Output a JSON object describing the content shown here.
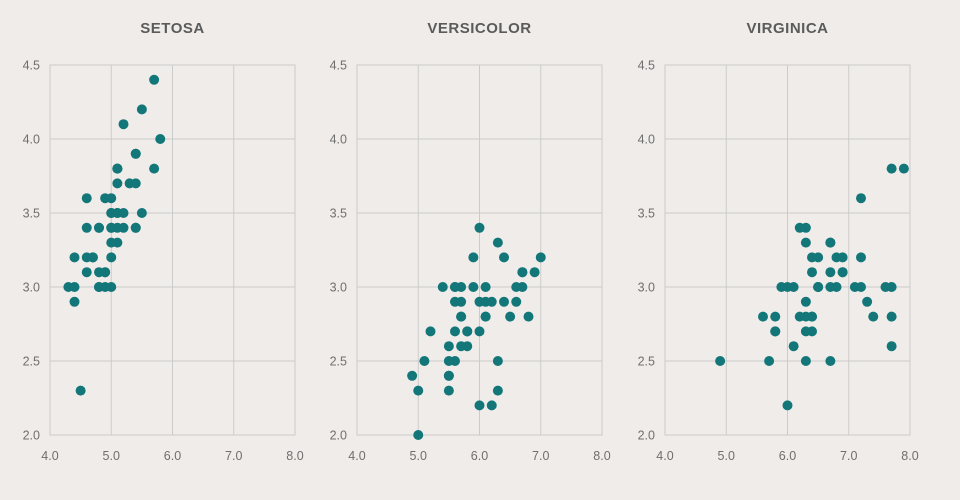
{
  "chart_data": [
    {
      "type": "scatter",
      "title": "SETOSA",
      "xlim": [
        4.0,
        8.0
      ],
      "ylim": [
        2.0,
        4.5
      ],
      "x_ticks": [
        "4.0",
        "5.0",
        "6.0",
        "7.0",
        "8.0"
      ],
      "y_ticks": [
        "2.0",
        "2.5",
        "3.0",
        "3.5",
        "4.0",
        "4.5"
      ],
      "grid": true,
      "color": "#137779",
      "points": [
        [
          5.1,
          3.5
        ],
        [
          4.9,
          3.0
        ],
        [
          4.7,
          3.2
        ],
        [
          4.6,
          3.1
        ],
        [
          5.0,
          3.6
        ],
        [
          5.4,
          3.9
        ],
        [
          4.6,
          3.4
        ],
        [
          5.0,
          3.4
        ],
        [
          4.4,
          2.9
        ],
        [
          4.9,
          3.1
        ],
        [
          5.4,
          3.7
        ],
        [
          4.8,
          3.4
        ],
        [
          4.8,
          3.0
        ],
        [
          4.3,
          3.0
        ],
        [
          5.8,
          4.0
        ],
        [
          5.7,
          4.4
        ],
        [
          5.4,
          3.9
        ],
        [
          5.1,
          3.5
        ],
        [
          5.7,
          3.8
        ],
        [
          5.1,
          3.8
        ],
        [
          5.4,
          3.4
        ],
        [
          5.1,
          3.7
        ],
        [
          4.6,
          3.6
        ],
        [
          5.1,
          3.3
        ],
        [
          4.8,
          3.4
        ],
        [
          5.0,
          3.0
        ],
        [
          5.0,
          3.4
        ],
        [
          5.2,
          3.5
        ],
        [
          5.2,
          3.4
        ],
        [
          4.7,
          3.2
        ],
        [
          4.8,
          3.1
        ],
        [
          5.4,
          3.4
        ],
        [
          5.2,
          4.1
        ],
        [
          5.5,
          4.2
        ],
        [
          4.9,
          3.1
        ],
        [
          5.0,
          3.2
        ],
        [
          5.5,
          3.5
        ],
        [
          4.9,
          3.6
        ],
        [
          4.4,
          3.0
        ],
        [
          5.1,
          3.4
        ],
        [
          5.0,
          3.5
        ],
        [
          4.5,
          2.3
        ],
        [
          4.4,
          3.2
        ],
        [
          5.0,
          3.5
        ],
        [
          5.1,
          3.8
        ],
        [
          4.8,
          3.0
        ],
        [
          5.1,
          3.8
        ],
        [
          4.6,
          3.2
        ],
        [
          5.3,
          3.7
        ],
        [
          5.0,
          3.3
        ]
      ]
    },
    {
      "type": "scatter",
      "title": "VERSICOLOR",
      "xlim": [
        4.0,
        8.0
      ],
      "ylim": [
        2.0,
        4.5
      ],
      "x_ticks": [
        "4.0",
        "5.0",
        "6.0",
        "7.0",
        "8.0"
      ],
      "y_ticks": [
        "2.0",
        "2.5",
        "3.0",
        "3.5",
        "4.0",
        "4.5"
      ],
      "grid": true,
      "color": "#137779",
      "points": [
        [
          7.0,
          3.2
        ],
        [
          6.4,
          3.2
        ],
        [
          6.9,
          3.1
        ],
        [
          5.5,
          2.3
        ],
        [
          6.5,
          2.8
        ],
        [
          5.7,
          2.8
        ],
        [
          6.3,
          3.3
        ],
        [
          4.9,
          2.4
        ],
        [
          6.6,
          2.9
        ],
        [
          5.2,
          2.7
        ],
        [
          5.0,
          2.0
        ],
        [
          5.9,
          3.0
        ],
        [
          6.0,
          2.2
        ],
        [
          6.1,
          2.9
        ],
        [
          5.6,
          2.9
        ],
        [
          6.7,
          3.1
        ],
        [
          5.6,
          3.0
        ],
        [
          5.8,
          2.7
        ],
        [
          6.2,
          2.2
        ],
        [
          5.6,
          2.5
        ],
        [
          5.9,
          3.2
        ],
        [
          6.1,
          2.8
        ],
        [
          6.3,
          2.5
        ],
        [
          6.1,
          2.8
        ],
        [
          6.4,
          2.9
        ],
        [
          6.6,
          3.0
        ],
        [
          6.8,
          2.8
        ],
        [
          6.7,
          3.0
        ],
        [
          6.0,
          2.9
        ],
        [
          5.7,
          2.6
        ],
        [
          5.5,
          2.4
        ],
        [
          5.5,
          2.4
        ],
        [
          5.8,
          2.7
        ],
        [
          6.0,
          2.7
        ],
        [
          5.4,
          3.0
        ],
        [
          6.0,
          3.4
        ],
        [
          6.7,
          3.1
        ],
        [
          6.3,
          2.3
        ],
        [
          5.6,
          3.0
        ],
        [
          5.5,
          2.5
        ],
        [
          5.5,
          2.6
        ],
        [
          6.1,
          3.0
        ],
        [
          5.8,
          2.6
        ],
        [
          5.0,
          2.3
        ],
        [
          5.6,
          2.7
        ],
        [
          5.7,
          3.0
        ],
        [
          5.7,
          2.9
        ],
        [
          6.2,
          2.9
        ],
        [
          5.1,
          2.5
        ],
        [
          5.7,
          2.8
        ]
      ]
    },
    {
      "type": "scatter",
      "title": "VIRGINICA",
      "xlim": [
        4.0,
        8.0
      ],
      "ylim": [
        2.0,
        4.5
      ],
      "x_ticks": [
        "4.0",
        "5.0",
        "6.0",
        "7.0",
        "8.0"
      ],
      "y_ticks": [
        "2.0",
        "2.5",
        "3.0",
        "3.5",
        "4.0",
        "4.5"
      ],
      "grid": true,
      "color": "#137779",
      "points": [
        [
          6.3,
          3.3
        ],
        [
          5.8,
          2.7
        ],
        [
          7.1,
          3.0
        ],
        [
          6.3,
          2.9
        ],
        [
          6.5,
          3.0
        ],
        [
          7.6,
          3.0
        ],
        [
          4.9,
          2.5
        ],
        [
          7.3,
          2.9
        ],
        [
          6.7,
          2.5
        ],
        [
          7.2,
          3.6
        ],
        [
          6.5,
          3.2
        ],
        [
          6.4,
          2.7
        ],
        [
          6.8,
          3.0
        ],
        [
          5.7,
          2.5
        ],
        [
          5.8,
          2.8
        ],
        [
          6.4,
          3.2
        ],
        [
          6.5,
          3.0
        ],
        [
          7.7,
          3.8
        ],
        [
          7.7,
          2.6
        ],
        [
          6.0,
          2.2
        ],
        [
          6.9,
          3.2
        ],
        [
          5.6,
          2.8
        ],
        [
          7.7,
          2.8
        ],
        [
          6.3,
          2.7
        ],
        [
          6.7,
          3.3
        ],
        [
          7.2,
          3.2
        ],
        [
          6.2,
          2.8
        ],
        [
          6.1,
          3.0
        ],
        [
          6.4,
          2.8
        ],
        [
          7.2,
          3.0
        ],
        [
          7.4,
          2.8
        ],
        [
          7.9,
          3.8
        ],
        [
          6.4,
          2.8
        ],
        [
          6.3,
          2.8
        ],
        [
          6.1,
          2.6
        ],
        [
          7.7,
          3.0
        ],
        [
          6.3,
          3.4
        ],
        [
          6.4,
          3.1
        ],
        [
          6.0,
          3.0
        ],
        [
          6.9,
          3.1
        ],
        [
          6.7,
          3.1
        ],
        [
          6.9,
          3.1
        ],
        [
          5.8,
          2.7
        ],
        [
          6.8,
          3.2
        ],
        [
          6.7,
          3.3
        ],
        [
          6.7,
          3.0
        ],
        [
          6.3,
          2.5
        ],
        [
          6.5,
          3.0
        ],
        [
          6.2,
          3.4
        ],
        [
          5.9,
          3.0
        ]
      ]
    }
  ]
}
